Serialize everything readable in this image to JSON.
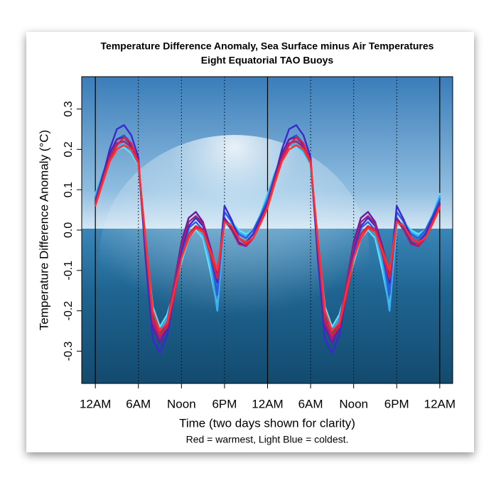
{
  "chart_data": {
    "type": "line",
    "title": "Temperature Difference Anomaly, Sea Surface minus Air Temperatures",
    "subtitle": "Eight Equatorial TAO Buoys",
    "x_label": "Time (two days shown for clarity)",
    "y_label": "Temperature Difference Anomaly (°C)",
    "note": "Red = warmest, Light Blue = coldest.",
    "xlim": [
      -1.9,
      49.8
    ],
    "ylim": [
      -0.38,
      0.38
    ],
    "xticks": [
      {
        "value": 0,
        "label": "12AM"
      },
      {
        "value": 6,
        "label": "6AM"
      },
      {
        "value": 12,
        "label": "Noon"
      },
      {
        "value": 18,
        "label": "6PM"
      },
      {
        "value": 24,
        "label": "12AM"
      },
      {
        "value": 30,
        "label": "6AM"
      },
      {
        "value": 36,
        "label": "Noon"
      },
      {
        "value": 42,
        "label": "6PM"
      },
      {
        "value": 48,
        "label": "12AM"
      }
    ],
    "yticks": [
      -0.3,
      -0.2,
      -0.1,
      {
        "value": 0,
        "label": "0.0"
      },
      0.1,
      0.2,
      0.3
    ],
    "x": [
      0,
      1,
      2,
      3,
      4,
      5,
      6,
      7,
      8,
      9,
      10,
      11,
      12,
      13,
      14,
      15,
      16,
      17,
      18,
      19,
      20,
      21,
      22,
      23,
      24,
      25,
      26,
      27,
      28,
      29,
      30,
      31,
      32,
      33,
      34,
      35,
      36,
      37,
      38,
      39,
      40,
      41,
      42,
      43,
      44,
      45,
      46,
      47,
      48
    ],
    "series": [
      {
        "color": "#5ee0ff",
        "values": [
          0.09,
          0.14,
          0.18,
          0.2,
          0.205,
          0.19,
          0.16,
          -0.03,
          -0.19,
          -0.24,
          -0.21,
          -0.15,
          -0.08,
          -0.02,
          0.0,
          -0.02,
          -0.1,
          -0.19,
          0.01,
          0.02,
          0.0,
          -0.01,
          0.0,
          0.04,
          0.09,
          0.14,
          0.18,
          0.2,
          0.205,
          0.19,
          0.16,
          -0.03,
          -0.19,
          -0.24,
          -0.21,
          -0.15,
          -0.08,
          -0.02,
          0.0,
          -0.02,
          -0.1,
          -0.19,
          0.01,
          0.02,
          0.0,
          -0.01,
          0.0,
          0.04,
          0.09
        ]
      },
      {
        "color": "#3ab0f0",
        "values": [
          0.085,
          0.14,
          0.185,
          0.21,
          0.21,
          0.195,
          0.165,
          -0.04,
          -0.2,
          -0.25,
          -0.22,
          -0.15,
          -0.07,
          -0.01,
          0.01,
          -0.01,
          -0.08,
          -0.2,
          0.02,
          0.015,
          -0.005,
          -0.015,
          0.0,
          0.035,
          0.085,
          0.14,
          0.185,
          0.21,
          0.21,
          0.195,
          0.165,
          -0.04,
          -0.2,
          -0.25,
          -0.22,
          -0.15,
          -0.07,
          -0.01,
          0.01,
          -0.01,
          -0.08,
          -0.2,
          0.02,
          0.015,
          -0.005,
          -0.015,
          0.0,
          0.035,
          0.085
        ]
      },
      {
        "color": "#2a5ce0",
        "values": [
          0.075,
          0.135,
          0.19,
          0.225,
          0.235,
          0.215,
          0.17,
          -0.06,
          -0.24,
          -0.28,
          -0.24,
          -0.15,
          -0.06,
          0.005,
          0.02,
          0.0,
          -0.06,
          -0.16,
          0.045,
          0.02,
          -0.01,
          -0.02,
          0.0,
          0.035,
          0.075,
          0.135,
          0.19,
          0.225,
          0.235,
          0.215,
          0.17,
          -0.06,
          -0.24,
          -0.28,
          -0.24,
          -0.15,
          -0.06,
          0.005,
          0.02,
          0.0,
          -0.06,
          -0.16,
          0.045,
          0.02,
          -0.01,
          -0.02,
          0.0,
          0.035,
          0.075
        ]
      },
      {
        "color": "#3a28d0",
        "values": [
          0.065,
          0.13,
          0.2,
          0.25,
          0.26,
          0.235,
          0.18,
          -0.07,
          -0.27,
          -0.305,
          -0.26,
          -0.16,
          -0.05,
          0.01,
          0.03,
          0.01,
          -0.06,
          -0.13,
          0.06,
          0.025,
          -0.02,
          -0.03,
          -0.01,
          0.03,
          0.065,
          0.13,
          0.2,
          0.25,
          0.26,
          0.235,
          0.18,
          -0.07,
          -0.27,
          -0.305,
          -0.26,
          -0.16,
          -0.05,
          0.01,
          0.03,
          0.01,
          -0.06,
          -0.13,
          0.06,
          0.025,
          -0.02,
          -0.03,
          -0.01,
          0.03,
          0.065
        ]
      },
      {
        "color": "#6a1aa0",
        "values": [
          0.07,
          0.13,
          0.19,
          0.225,
          0.23,
          0.21,
          0.17,
          -0.05,
          -0.24,
          -0.28,
          -0.24,
          -0.13,
          -0.03,
          0.03,
          0.045,
          0.02,
          -0.04,
          -0.11,
          0.03,
          0.005,
          -0.03,
          -0.04,
          -0.02,
          0.02,
          0.065,
          0.13,
          0.19,
          0.225,
          0.23,
          0.21,
          0.17,
          -0.05,
          -0.24,
          -0.28,
          -0.24,
          -0.13,
          -0.03,
          0.03,
          0.045,
          0.02,
          -0.04,
          -0.11,
          0.03,
          0.005,
          -0.03,
          -0.04,
          -0.02,
          0.02,
          0.065
        ]
      },
      {
        "color": "#a0207a",
        "values": [
          0.065,
          0.125,
          0.18,
          0.215,
          0.22,
          0.205,
          0.165,
          -0.04,
          -0.23,
          -0.27,
          -0.23,
          -0.13,
          -0.04,
          0.02,
          0.035,
          0.015,
          -0.05,
          -0.12,
          0.025,
          0.0,
          -0.035,
          -0.04,
          -0.02,
          0.02,
          0.06,
          0.125,
          0.18,
          0.215,
          0.22,
          0.205,
          0.165,
          -0.04,
          -0.23,
          -0.27,
          -0.23,
          -0.13,
          -0.04,
          0.02,
          0.035,
          0.015,
          -0.05,
          -0.12,
          0.025,
          0.0,
          -0.035,
          -0.04,
          -0.02,
          0.02,
          0.06
        ]
      },
      {
        "color": "#e0203a",
        "values": [
          0.065,
          0.12,
          0.175,
          0.21,
          0.23,
          0.215,
          0.17,
          -0.03,
          -0.22,
          -0.26,
          -0.24,
          -0.16,
          -0.07,
          -0.01,
          0.01,
          0.0,
          -0.06,
          -0.12,
          0.02,
          0.01,
          -0.02,
          -0.035,
          -0.02,
          0.02,
          0.06,
          0.12,
          0.175,
          0.21,
          0.23,
          0.215,
          0.17,
          -0.03,
          -0.22,
          -0.26,
          -0.24,
          -0.16,
          -0.07,
          -0.01,
          0.01,
          0.0,
          -0.06,
          -0.12,
          0.02,
          0.01,
          -0.02,
          -0.035,
          -0.02,
          0.02,
          0.06
        ]
      },
      {
        "color": "#ff3030",
        "values": [
          0.06,
          0.115,
          0.17,
          0.2,
          0.21,
          0.2,
          0.165,
          -0.02,
          -0.2,
          -0.25,
          -0.23,
          -0.15,
          -0.07,
          -0.02,
          0.005,
          -0.005,
          -0.05,
          -0.1,
          0.02,
          0.01,
          -0.02,
          -0.03,
          -0.02,
          0.015,
          0.055,
          0.115,
          0.17,
          0.2,
          0.21,
          0.2,
          0.165,
          -0.02,
          -0.2,
          -0.25,
          -0.23,
          -0.15,
          -0.07,
          -0.02,
          0.005,
          -0.005,
          -0.05,
          -0.1,
          0.02,
          0.01,
          -0.02,
          -0.03,
          -0.02,
          0.015,
          0.055
        ]
      }
    ]
  }
}
